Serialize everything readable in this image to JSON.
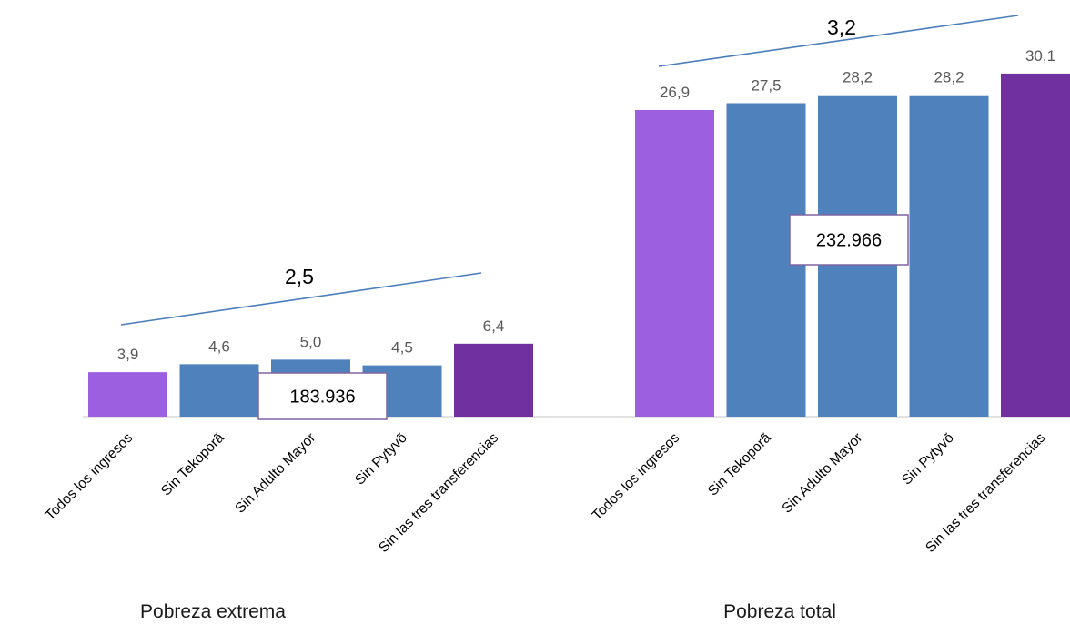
{
  "chart_data": {
    "type": "bar",
    "colors": {
      "all_income": "#9b5fe0",
      "without_program": "#4f81bd",
      "without_all": "#7030a0",
      "trend_line": "#4a7ebb",
      "axis": "#d9d9d9",
      "box_border": "#8064a2"
    },
    "ylim": [
      0,
      32
    ],
    "groups": [
      {
        "name": "Pobreza extrema",
        "categories": [
          "Todos los ingresos",
          "Sin Tekoporã",
          "Sin Adulto Mayor",
          "Sin Pytyvõ",
          "Sin las tres transferencias"
        ],
        "values": [
          3.9,
          4.6,
          5.0,
          4.5,
          6.4
        ],
        "value_labels": [
          "3,9",
          "4,6",
          "5,0",
          "4,5",
          "6,4"
        ],
        "difference_label": "2,5",
        "box_label": "183.936"
      },
      {
        "name": "Pobreza total",
        "categories": [
          "Todos los ingresos",
          "Sin Tekoporã",
          "Sin Adulto Mayor",
          "Sin Pytyvõ",
          "Sin las tres transferencias"
        ],
        "values": [
          26.9,
          27.5,
          28.2,
          28.2,
          30.1
        ],
        "value_labels": [
          "26,9",
          "27,5",
          "28,2",
          "28,2",
          "30,1"
        ],
        "difference_label": "3,2",
        "box_label": "232.966"
      }
    ]
  }
}
